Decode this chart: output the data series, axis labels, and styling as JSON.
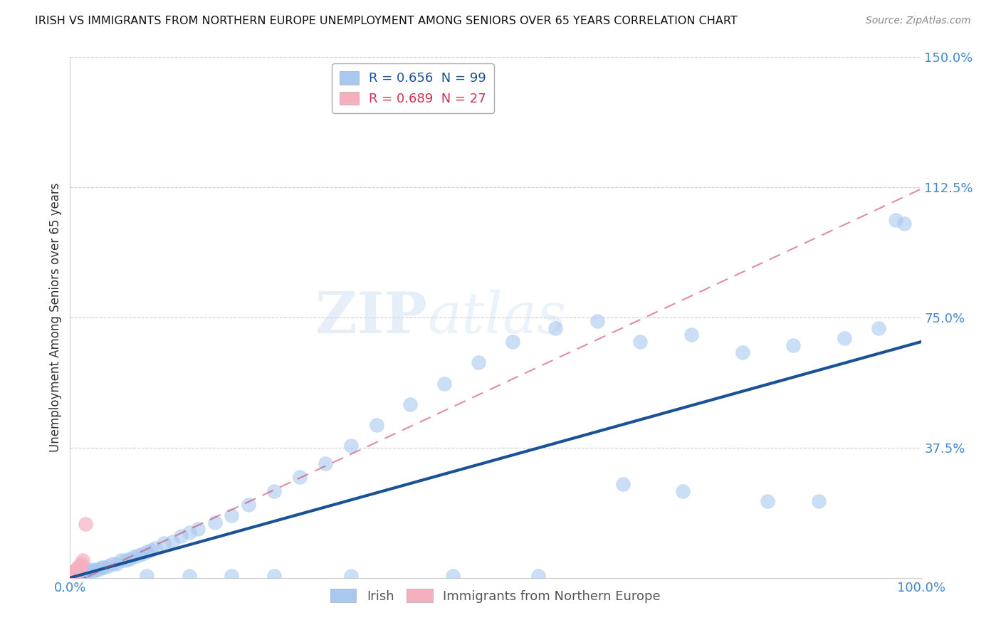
{
  "title": "IRISH VS IMMIGRANTS FROM NORTHERN EUROPE UNEMPLOYMENT AMONG SENIORS OVER 65 YEARS CORRELATION CHART",
  "source": "Source: ZipAtlas.com",
  "ylabel": "Unemployment Among Seniors over 65 years",
  "xmin": 0.0,
  "xmax": 1.0,
  "ymin": 0.0,
  "ymax": 1.5,
  "irish_R": 0.656,
  "irish_N": 99,
  "ne_R": 0.689,
  "ne_N": 27,
  "irish_color": "#a8c8f0",
  "irish_line_color": "#1a5296",
  "ne_color": "#f5b0c0",
  "ne_line_color": "#d04060",
  "watermark_zip": "ZIP",
  "watermark_atlas": "atlas",
  "legend_irish_label": "Irish",
  "legend_ne_label": "Immigrants from Northern Europe",
  "irish_scatter_x": [
    0.001,
    0.001,
    0.001,
    0.002,
    0.002,
    0.002,
    0.002,
    0.003,
    0.003,
    0.003,
    0.003,
    0.003,
    0.004,
    0.004,
    0.004,
    0.004,
    0.005,
    0.005,
    0.005,
    0.005,
    0.006,
    0.006,
    0.006,
    0.007,
    0.007,
    0.007,
    0.008,
    0.008,
    0.009,
    0.009,
    0.01,
    0.01,
    0.011,
    0.012,
    0.012,
    0.013,
    0.014,
    0.015,
    0.016,
    0.017,
    0.018,
    0.02,
    0.022,
    0.025,
    0.027,
    0.03,
    0.033,
    0.037,
    0.04,
    0.045,
    0.05,
    0.055,
    0.06,
    0.065,
    0.07,
    0.075,
    0.08,
    0.085,
    0.09,
    0.095,
    0.1,
    0.11,
    0.12,
    0.13,
    0.14,
    0.15,
    0.17,
    0.19,
    0.21,
    0.24,
    0.27,
    0.3,
    0.33,
    0.36,
    0.4,
    0.44,
    0.48,
    0.52,
    0.57,
    0.62,
    0.67,
    0.73,
    0.79,
    0.85,
    0.91,
    0.95,
    0.97,
    0.98,
    0.65,
    0.72,
    0.82,
    0.88,
    0.33,
    0.45,
    0.55,
    0.24,
    0.19,
    0.14,
    0.09
  ],
  "irish_scatter_y": [
    0.0,
    0.0,
    0.0,
    0.0,
    0.0,
    0.0,
    0.0,
    0.0,
    0.0,
    0.0,
    0.0,
    0.0,
    0.0,
    0.0,
    0.0,
    0.0,
    0.0,
    0.0,
    0.0,
    0.005,
    0.0,
    0.0,
    0.005,
    0.0,
    0.0,
    0.005,
    0.005,
    0.0,
    0.005,
    0.0,
    0.005,
    0.01,
    0.005,
    0.01,
    0.005,
    0.01,
    0.01,
    0.015,
    0.01,
    0.015,
    0.01,
    0.02,
    0.02,
    0.025,
    0.02,
    0.025,
    0.025,
    0.03,
    0.03,
    0.035,
    0.04,
    0.04,
    0.05,
    0.05,
    0.055,
    0.06,
    0.065,
    0.07,
    0.075,
    0.08,
    0.085,
    0.1,
    0.105,
    0.12,
    0.13,
    0.14,
    0.16,
    0.18,
    0.21,
    0.25,
    0.29,
    0.33,
    0.38,
    0.44,
    0.5,
    0.56,
    0.62,
    0.68,
    0.72,
    0.74,
    0.68,
    0.7,
    0.65,
    0.67,
    0.69,
    0.72,
    1.03,
    1.02,
    0.27,
    0.25,
    0.22,
    0.22,
    0.005,
    0.005,
    0.005,
    0.005,
    0.005,
    0.005,
    0.005
  ],
  "ne_scatter_x": [
    0.001,
    0.001,
    0.002,
    0.002,
    0.002,
    0.003,
    0.003,
    0.003,
    0.003,
    0.004,
    0.004,
    0.004,
    0.005,
    0.005,
    0.005,
    0.006,
    0.006,
    0.007,
    0.007,
    0.008,
    0.009,
    0.01,
    0.011,
    0.012,
    0.013,
    0.015,
    0.018
  ],
  "ne_scatter_y": [
    0.0,
    0.005,
    0.005,
    0.01,
    0.0,
    0.01,
    0.015,
    0.005,
    0.0,
    0.01,
    0.015,
    0.005,
    0.015,
    0.02,
    0.005,
    0.02,
    0.01,
    0.02,
    0.025,
    0.025,
    0.03,
    0.03,
    0.035,
    0.035,
    0.04,
    0.05,
    0.155
  ],
  "irish_line_x0": 0.0,
  "irish_line_x1": 1.0,
  "irish_line_y0": 0.0,
  "irish_line_y1": 0.68,
  "ne_line_x0": 0.0,
  "ne_line_x1": 1.0,
  "ne_line_y0": -0.02,
  "ne_line_y1": 1.12
}
